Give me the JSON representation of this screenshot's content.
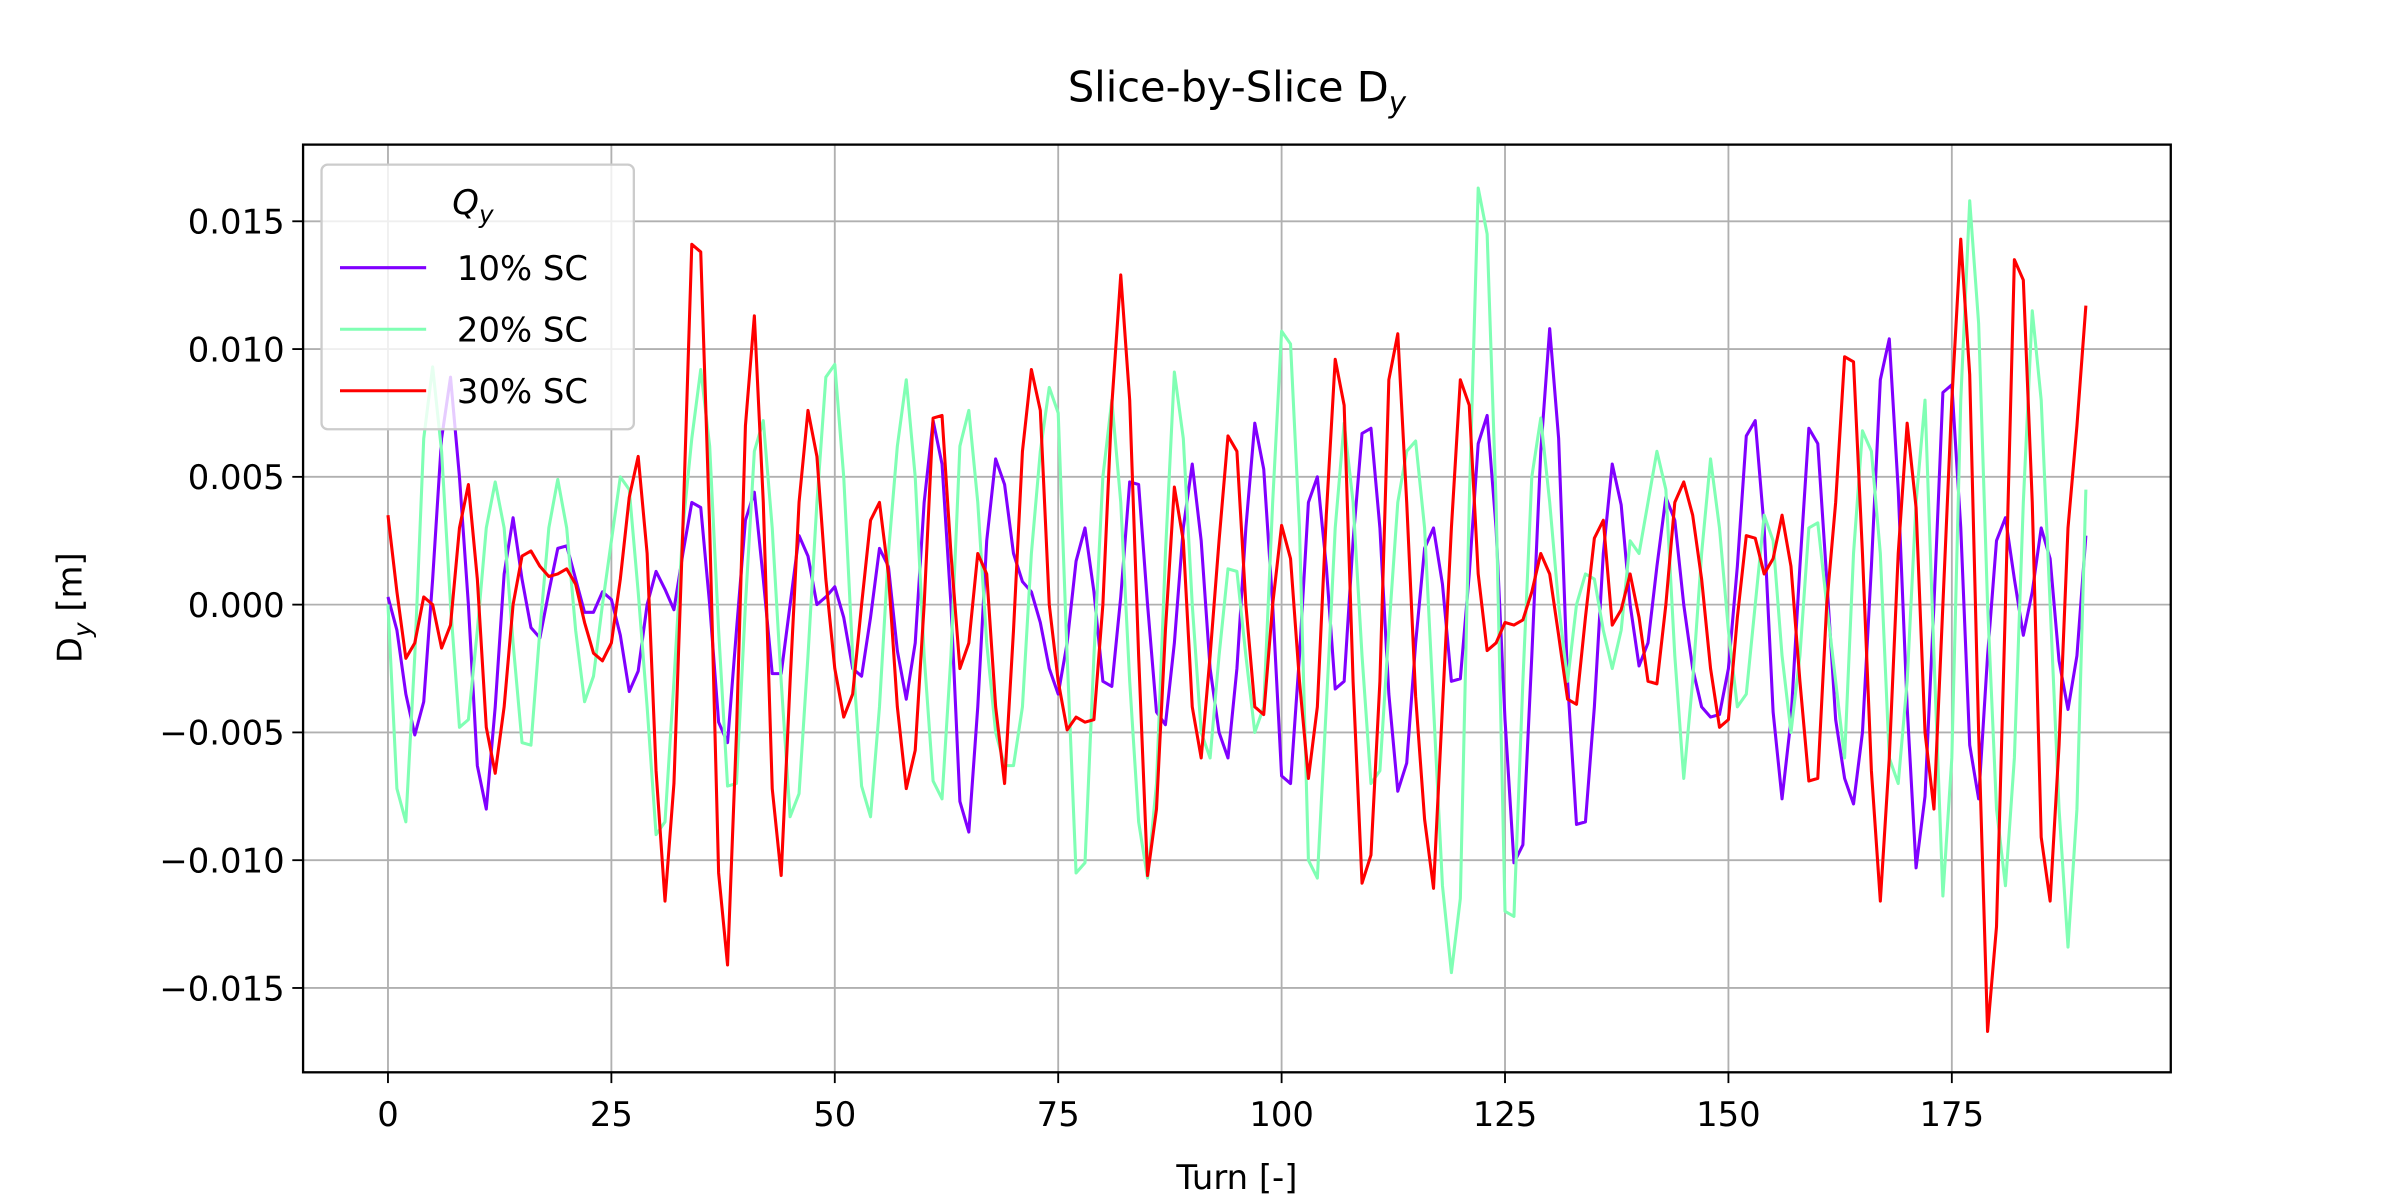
{
  "chart_data": {
    "type": "line",
    "title": {
      "text": "Slice-by-Slice D",
      "subscript": "y"
    },
    "xlabel": "Turn [-]",
    "ylabel": {
      "text": "D",
      "subscript": "y",
      "suffix": " [m]"
    },
    "legend": {
      "title": {
        "text": "Q",
        "subscript": "y"
      },
      "corner": "upper left"
    },
    "grid": true,
    "xlim": [
      -9.5,
      199.5
    ],
    "xticks": [
      0,
      25,
      50,
      75,
      100,
      125,
      150,
      175
    ],
    "ylim": [
      -0.0183,
      0.018
    ],
    "yticks": [
      {
        "value": -0.015,
        "label": "−0.015"
      },
      {
        "value": -0.01,
        "label": "−0.010"
      },
      {
        "value": -0.005,
        "label": "−0.005"
      },
      {
        "value": 0,
        "label": "0.000"
      },
      {
        "value": 0.005,
        "label": "0.005"
      },
      {
        "value": 0.01,
        "label": "0.010"
      },
      {
        "value": 0.015,
        "label": "0.015"
      }
    ],
    "x": [
      0,
      1,
      2,
      3,
      4,
      5,
      6,
      7,
      8,
      9,
      10,
      11,
      12,
      13,
      14,
      15,
      16,
      17,
      18,
      19,
      20,
      21,
      22,
      23,
      24,
      25,
      26,
      27,
      28,
      29,
      30,
      31,
      32,
      33,
      34,
      35,
      36,
      37,
      38,
      39,
      40,
      41,
      42,
      43,
      44,
      45,
      46,
      47,
      48,
      49,
      50,
      51,
      52,
      53,
      54,
      55,
      56,
      57,
      58,
      59,
      60,
      61,
      62,
      63,
      64,
      65,
      66,
      67,
      68,
      69,
      70,
      71,
      72,
      73,
      74,
      75,
      76,
      77,
      78,
      79,
      80,
      81,
      82,
      83,
      84,
      85,
      86,
      87,
      88,
      89,
      90,
      91,
      92,
      93,
      94,
      95,
      96,
      97,
      98,
      99,
      100,
      101,
      102,
      103,
      104,
      105,
      106,
      107,
      108,
      109,
      110,
      111,
      112,
      113,
      114,
      115,
      116,
      117,
      118,
      119,
      120,
      121,
      122,
      123,
      124,
      125,
      126,
      127,
      128,
      129,
      130,
      131,
      132,
      133,
      134,
      135,
      136,
      137,
      138,
      139,
      140,
      141,
      142,
      143,
      144,
      145,
      146,
      147,
      148,
      149,
      150,
      151,
      152,
      153,
      154,
      155,
      156,
      157,
      158,
      159,
      160,
      161,
      162,
      163,
      164,
      165,
      166,
      167,
      168,
      169,
      170,
      171,
      172,
      173,
      174,
      175,
      176,
      177,
      178,
      179,
      180,
      181,
      182,
      183,
      184,
      185,
      186,
      187,
      188,
      189,
      190
    ],
    "series": [
      {
        "name": "10% SC",
        "color": "#8000ff",
        "values": [
          0.0003,
          -0.001,
          -0.0035,
          -0.0051,
          -0.0038,
          0.001,
          0.0065,
          0.0089,
          0.005,
          0.0,
          -0.0063,
          -0.008,
          -0.004,
          0.0012,
          0.0034,
          0.001,
          -0.0009,
          -0.0013,
          0.0005,
          0.0022,
          0.0023,
          0.001,
          -0.0003,
          -0.0003,
          0.0005,
          0.0002,
          -0.0012,
          -0.0034,
          -0.0026,
          0.0,
          0.0013,
          0.0006,
          -0.0002,
          0.002,
          0.004,
          0.0038,
          0.0,
          -0.0046,
          -0.0054,
          -0.001,
          0.0033,
          0.0044,
          0.001,
          -0.0027,
          -0.0027,
          0.0,
          0.0027,
          0.0019,
          0.0,
          0.0003,
          0.0007,
          -0.0005,
          -0.0025,
          -0.0028,
          -0.0005,
          0.0022,
          0.0015,
          -0.0018,
          -0.0037,
          -0.0015,
          0.004,
          0.0072,
          0.0055,
          0.0,
          -0.0077,
          -0.0089,
          -0.004,
          0.0025,
          0.0057,
          0.0047,
          0.002,
          0.0009,
          0.0005,
          -0.0007,
          -0.0025,
          -0.0035,
          -0.0015,
          0.0017,
          0.003,
          0.0005,
          -0.003,
          -0.0032,
          0.0003,
          0.0048,
          0.0047,
          0.0,
          -0.0042,
          -0.0047,
          -0.0015,
          0.003,
          0.0055,
          0.0025,
          -0.0025,
          -0.005,
          -0.006,
          -0.0025,
          0.003,
          0.0071,
          0.0053,
          0.0,
          -0.0067,
          -0.007,
          -0.002,
          0.004,
          0.005,
          0.0015,
          -0.0033,
          -0.003,
          0.0025,
          0.0067,
          0.0069,
          0.003,
          -0.0035,
          -0.0073,
          -0.0062,
          -0.0015,
          0.0022,
          0.003,
          0.0008,
          -0.003,
          -0.0029,
          0.0012,
          0.0063,
          0.0074,
          0.003,
          -0.0045,
          -0.0101,
          -0.0094,
          -0.002,
          0.006,
          0.0108,
          0.0065,
          -0.003,
          -0.0086,
          -0.0085,
          -0.004,
          0.002,
          0.0055,
          0.0039,
          0.0,
          -0.0024,
          -0.0015,
          0.0015,
          0.0042,
          0.0033,
          0.0,
          -0.0025,
          -0.004,
          -0.0044,
          -0.0043,
          -0.0025,
          0.0015,
          0.0066,
          0.0072,
          0.003,
          -0.0042,
          -0.0076,
          -0.0045,
          0.0015,
          0.0069,
          0.0063,
          0.001,
          -0.0045,
          -0.0068,
          -0.0078,
          -0.005,
          0.0015,
          0.0088,
          0.0104,
          0.0045,
          -0.004,
          -0.0103,
          -0.0075,
          0.0,
          0.0083,
          0.0086,
          0.003,
          -0.0055,
          -0.0076,
          -0.002,
          0.0025,
          0.0034,
          0.001,
          -0.0012,
          0.0005,
          0.003,
          0.0018,
          -0.0022,
          -0.0041,
          -0.002,
          0.0027
        ]
      },
      {
        "name": "20% SC",
        "color": "#80ffb4",
        "values": [
          0.0,
          -0.0072,
          -0.0085,
          -0.002,
          0.0065,
          0.0093,
          0.006,
          0.0,
          -0.0048,
          -0.0045,
          -0.001,
          0.003,
          0.0048,
          0.003,
          -0.0015,
          -0.0054,
          -0.0055,
          -0.001,
          0.003,
          0.0049,
          0.003,
          -0.001,
          -0.0038,
          -0.0028,
          0.0,
          0.0025,
          0.005,
          0.0045,
          0.0005,
          -0.004,
          -0.009,
          -0.0085,
          -0.003,
          0.003,
          0.0065,
          0.0092,
          0.0062,
          -0.001,
          -0.0071,
          -0.007,
          0.0,
          0.006,
          0.0072,
          0.003,
          -0.003,
          -0.0083,
          -0.0074,
          -0.002,
          0.004,
          0.0089,
          0.0094,
          0.005,
          -0.002,
          -0.0071,
          -0.0083,
          -0.004,
          0.002,
          0.0062,
          0.0088,
          0.005,
          -0.002,
          -0.0069,
          -0.0076,
          -0.002,
          0.0062,
          0.0076,
          0.004,
          -0.0015,
          -0.005,
          -0.0063,
          -0.0063,
          -0.004,
          0.002,
          0.006,
          0.0085,
          0.0075,
          -0.002,
          -0.0105,
          -0.0101,
          -0.002,
          0.005,
          0.008,
          0.004,
          -0.003,
          -0.0085,
          -0.0107,
          -0.007,
          0.002,
          0.0091,
          0.0065,
          0.0,
          -0.005,
          -0.006,
          -0.002,
          0.0014,
          0.0013,
          -0.002,
          -0.005,
          -0.004,
          0.004,
          0.0107,
          0.0102,
          0.003,
          -0.01,
          -0.0107,
          -0.004,
          0.003,
          0.0071,
          0.004,
          -0.002,
          -0.007,
          -0.0065,
          -0.001,
          0.004,
          0.006,
          0.0064,
          0.003,
          -0.004,
          -0.011,
          -0.0144,
          -0.0115,
          0.004,
          0.0163,
          0.0145,
          0.004,
          -0.012,
          -0.0122,
          -0.003,
          0.005,
          0.0073,
          0.004,
          0.0,
          -0.003,
          0.0,
          0.0012,
          0.001,
          -0.001,
          -0.0025,
          -0.001,
          0.0025,
          0.002,
          0.004,
          0.006,
          0.0045,
          -0.002,
          -0.0068,
          -0.003,
          0.002,
          0.0057,
          0.003,
          -0.001,
          -0.004,
          -0.0035,
          0.0,
          0.0035,
          0.0025,
          -0.002,
          -0.005,
          -0.002,
          0.003,
          0.0032,
          0.0,
          -0.003,
          -0.006,
          0.002,
          0.0068,
          0.006,
          0.002,
          -0.006,
          -0.007,
          -0.003,
          0.004,
          0.008,
          -0.002,
          -0.0114,
          -0.006,
          0.008,
          0.0158,
          0.011,
          0.0,
          -0.008,
          -0.011,
          -0.006,
          0.004,
          0.0115,
          0.008,
          0.0,
          -0.008,
          -0.0134,
          -0.008,
          0.0045
        ]
      },
      {
        "name": "30% SC",
        "color": "#ff0000",
        "values": [
          0.0035,
          0.0005,
          -0.0021,
          -0.0015,
          0.0003,
          0.0,
          -0.0017,
          -0.0008,
          0.003,
          0.0047,
          0.001,
          -0.0048,
          -0.0066,
          -0.004,
          0.0,
          0.0019,
          0.0021,
          0.0015,
          0.0011,
          0.0012,
          0.0014,
          0.0008,
          -0.0007,
          -0.0019,
          -0.0022,
          -0.0015,
          0.001,
          0.0042,
          0.0058,
          0.002,
          -0.0065,
          -0.0116,
          -0.007,
          0.003,
          0.0141,
          0.0138,
          0.003,
          -0.0105,
          -0.0141,
          -0.005,
          0.007,
          0.0113,
          0.004,
          -0.0072,
          -0.0106,
          -0.003,
          0.004,
          0.0076,
          0.0058,
          0.001,
          -0.0025,
          -0.0044,
          -0.0035,
          0.0,
          0.0033,
          0.004,
          0.0012,
          -0.004,
          -0.0072,
          -0.0057,
          0.0,
          0.0073,
          0.0074,
          0.002,
          -0.0025,
          -0.0015,
          0.002,
          0.0012,
          -0.004,
          -0.007,
          -0.001,
          0.006,
          0.0092,
          0.0076,
          0.0,
          -0.003,
          -0.0049,
          -0.0044,
          -0.0046,
          -0.0045,
          0.0,
          0.0078,
          0.0129,
          0.008,
          -0.002,
          -0.0106,
          -0.008,
          -0.001,
          0.0046,
          0.0025,
          -0.004,
          -0.006,
          -0.002,
          0.0025,
          0.0066,
          0.006,
          0.0,
          -0.004,
          -0.0043,
          0.0,
          0.0031,
          0.0018,
          -0.003,
          -0.0068,
          -0.004,
          0.0035,
          0.0096,
          0.0078,
          -0.003,
          -0.0109,
          -0.0098,
          -0.003,
          0.0088,
          0.0106,
          0.004,
          -0.0036,
          -0.0084,
          -0.0111,
          -0.004,
          0.003,
          0.0088,
          0.0078,
          0.0012,
          -0.0018,
          -0.0015,
          -0.0007,
          -0.0008,
          -0.0006,
          0.0005,
          0.002,
          0.0012,
          -0.0012,
          -0.0037,
          -0.0039,
          -0.0005,
          0.0026,
          0.0033,
          -0.0008,
          -0.0002,
          0.0012,
          -0.0005,
          -0.003,
          -0.0031,
          0.0,
          0.004,
          0.0048,
          0.0035,
          0.001,
          -0.0025,
          -0.0048,
          -0.0045,
          -0.0005,
          0.0027,
          0.0026,
          0.0012,
          0.0018,
          0.0035,
          0.0015,
          -0.003,
          -0.0069,
          -0.0068,
          0.0,
          0.004,
          0.0097,
          0.0095,
          0.002,
          -0.0065,
          -0.0116,
          -0.006,
          0.002,
          0.0071,
          0.0038,
          -0.005,
          -0.008,
          0.0,
          0.008,
          0.0143,
          0.009,
          -0.005,
          -0.0167,
          -0.0126,
          0.0,
          0.0135,
          0.0127,
          0.004,
          -0.0091,
          -0.0116,
          -0.0055,
          0.003,
          0.007,
          0.0117
        ]
      }
    ]
  }
}
